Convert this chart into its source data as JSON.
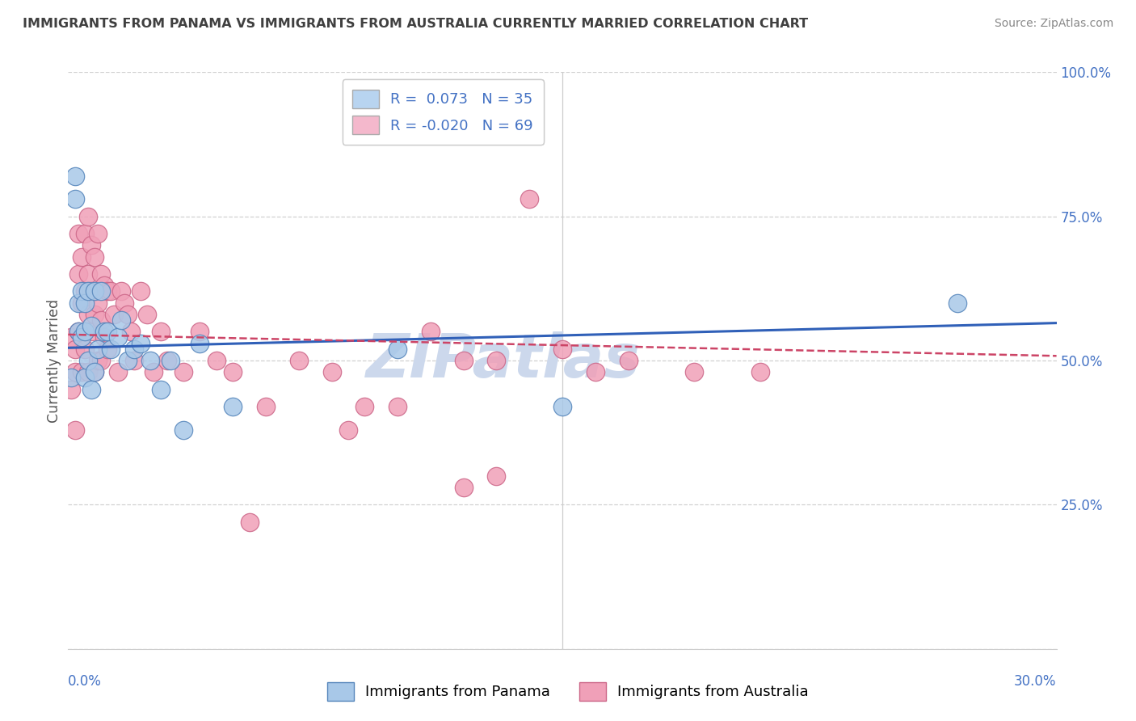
{
  "title": "IMMIGRANTS FROM PANAMA VS IMMIGRANTS FROM AUSTRALIA CURRENTLY MARRIED CORRELATION CHART",
  "source": "Source: ZipAtlas.com",
  "ylabel": "Currently Married",
  "xlim": [
    0.0,
    0.3
  ],
  "ylim": [
    0.0,
    1.0
  ],
  "yticks": [
    0.0,
    0.25,
    0.5,
    0.75,
    1.0
  ],
  "ytick_labels": [
    "",
    "25.0%",
    "50.0%",
    "75.0%",
    "100.0%"
  ],
  "xtick_left_label": "0.0%",
  "xtick_right_label": "30.0%",
  "series1_name": "Immigrants from Panama",
  "series2_name": "Immigrants from Australia",
  "series1_fill": "#a8c8e8",
  "series1_edge": "#5585bb",
  "series2_fill": "#f0a0b8",
  "series2_edge": "#cc6688",
  "trendline1_color": "#3060b8",
  "trendline2_color": "#cc4466",
  "trendline1_style": "solid",
  "trendline2_style": "dashed",
  "R1": 0.073,
  "N1": 35,
  "R2": -0.02,
  "N2": 69,
  "legend_box_color1": "#b8d4f0",
  "legend_box_color2": "#f4b8cc",
  "axis_label_color": "#4472c4",
  "grid_color": "#cccccc",
  "title_color": "#404040",
  "source_color": "#888888",
  "watermark_text": "ZIPatlas",
  "watermark_color": "#ccd8ec",
  "background": "#ffffff",
  "panama_x": [
    0.001,
    0.002,
    0.002,
    0.003,
    0.003,
    0.004,
    0.004,
    0.005,
    0.005,
    0.005,
    0.006,
    0.006,
    0.007,
    0.007,
    0.008,
    0.008,
    0.009,
    0.01,
    0.011,
    0.012,
    0.013,
    0.015,
    0.016,
    0.018,
    0.02,
    0.022,
    0.025,
    0.028,
    0.031,
    0.035,
    0.04,
    0.05,
    0.1,
    0.15,
    0.27
  ],
  "panama_y": [
    0.47,
    0.82,
    0.78,
    0.6,
    0.55,
    0.62,
    0.54,
    0.6,
    0.55,
    0.47,
    0.62,
    0.5,
    0.56,
    0.45,
    0.62,
    0.48,
    0.52,
    0.62,
    0.55,
    0.55,
    0.52,
    0.54,
    0.57,
    0.5,
    0.52,
    0.53,
    0.5,
    0.45,
    0.5,
    0.38,
    0.53,
    0.42,
    0.52,
    0.42,
    0.6
  ],
  "australia_x": [
    0.001,
    0.001,
    0.002,
    0.002,
    0.002,
    0.003,
    0.003,
    0.003,
    0.004,
    0.004,
    0.004,
    0.005,
    0.005,
    0.005,
    0.006,
    0.006,
    0.006,
    0.006,
    0.007,
    0.007,
    0.007,
    0.008,
    0.008,
    0.008,
    0.009,
    0.009,
    0.009,
    0.01,
    0.01,
    0.01,
    0.011,
    0.011,
    0.012,
    0.012,
    0.013,
    0.014,
    0.015,
    0.016,
    0.017,
    0.018,
    0.019,
    0.02,
    0.022,
    0.024,
    0.026,
    0.028,
    0.03,
    0.035,
    0.04,
    0.045,
    0.05,
    0.06,
    0.07,
    0.08,
    0.09,
    0.1,
    0.11,
    0.12,
    0.13,
    0.14,
    0.15,
    0.16,
    0.17,
    0.19,
    0.21,
    0.12,
    0.085,
    0.055,
    0.13
  ],
  "australia_y": [
    0.54,
    0.45,
    0.52,
    0.48,
    0.38,
    0.72,
    0.65,
    0.55,
    0.68,
    0.6,
    0.48,
    0.72,
    0.62,
    0.52,
    0.75,
    0.65,
    0.58,
    0.48,
    0.7,
    0.62,
    0.55,
    0.68,
    0.58,
    0.48,
    0.72,
    0.6,
    0.5,
    0.65,
    0.57,
    0.5,
    0.63,
    0.54,
    0.62,
    0.52,
    0.62,
    0.58,
    0.48,
    0.62,
    0.6,
    0.58,
    0.55,
    0.5,
    0.62,
    0.58,
    0.48,
    0.55,
    0.5,
    0.48,
    0.55,
    0.5,
    0.48,
    0.42,
    0.5,
    0.48,
    0.42,
    0.42,
    0.55,
    0.5,
    0.5,
    0.78,
    0.52,
    0.48,
    0.5,
    0.48,
    0.48,
    0.28,
    0.38,
    0.22,
    0.3
  ],
  "panama_trend_y0": 0.522,
  "panama_trend_y1": 0.565,
  "australia_trend_y0": 0.545,
  "australia_trend_y1": 0.508
}
